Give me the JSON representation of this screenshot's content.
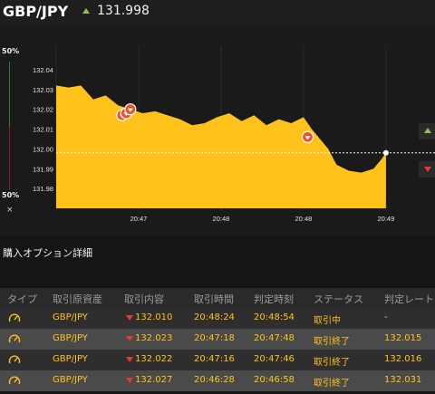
{
  "header": {
    "pair": "GBP/JPY",
    "price": "131.998",
    "trend_icon": "arrow-up-icon"
  },
  "colors": {
    "area_fill": "#ffc21a",
    "text_gold": "#ffc21a",
    "up_green": "#8bc34a",
    "down_red": "#e53935"
  },
  "meter": {
    "top_pct": "50%",
    "bottom_pct": "50%",
    "close_label": "×"
  },
  "chart_data": {
    "type": "area",
    "y_ticks": [
      "132.04",
      "132.03",
      "132.02",
      "132.01",
      "132.00",
      "131.99",
      "131.98"
    ],
    "ylim": [
      131.97,
      132.045
    ],
    "x_ticks": [
      "20:47",
      "20:48",
      "20:48",
      "20:49"
    ],
    "x_tick_times": [
      1,
      2,
      3,
      4
    ],
    "series": [
      {
        "points": [
          [
            0,
            132.032
          ],
          [
            0.15,
            132.031
          ],
          [
            0.3,
            132.032
          ],
          [
            0.45,
            132.025
          ],
          [
            0.6,
            132.027
          ],
          [
            0.75,
            132.022
          ],
          [
            0.9,
            132.02
          ],
          [
            1.05,
            132.018
          ],
          [
            1.2,
            132.019
          ],
          [
            1.35,
            132.017
          ],
          [
            1.5,
            132.015
          ],
          [
            1.65,
            132.012
          ],
          [
            1.8,
            132.013
          ],
          [
            1.95,
            132.016
          ],
          [
            2.1,
            132.018
          ],
          [
            2.25,
            132.014
          ],
          [
            2.4,
            132.017
          ],
          [
            2.55,
            132.012
          ],
          [
            2.7,
            132.015
          ],
          [
            2.85,
            132.013
          ],
          [
            3.0,
            132.016
          ],
          [
            3.1,
            132.01
          ],
          [
            3.2,
            132.005
          ],
          [
            3.3,
            132.0
          ],
          [
            3.4,
            131.992
          ],
          [
            3.55,
            131.989
          ],
          [
            3.7,
            131.988
          ],
          [
            3.85,
            131.99
          ],
          [
            3.95,
            131.995
          ],
          [
            4.0,
            131.998
          ]
        ]
      }
    ],
    "current_value": 131.998,
    "trade_markers": [
      {
        "x": 0.8,
        "y": 132.017
      },
      {
        "x": 0.85,
        "y": 132.018
      },
      {
        "x": 0.9,
        "y": 132.02
      },
      {
        "x": 3.05,
        "y": 132.006
      }
    ],
    "x_max": 4.0
  },
  "section": {
    "title": "購入オプション詳細"
  },
  "table": {
    "headers": [
      "タイプ",
      "取引原資産",
      "取引内容",
      "取引時間",
      "判定時刻",
      "ステータス",
      "判定レート"
    ],
    "rows": [
      {
        "asset": "GBP/JPY",
        "content": "132.010",
        "time": "20:48:24",
        "judge": "20:48:54",
        "status": "取引中",
        "rate": "-"
      },
      {
        "asset": "GBP/JPY",
        "content": "132.023",
        "time": "20:47:18",
        "judge": "20:47:48",
        "status": "取引終了",
        "rate": "132.015"
      },
      {
        "asset": "GBP/JPY",
        "content": "132.022",
        "time": "20:47:16",
        "judge": "20:47:46",
        "status": "取引終了",
        "rate": "132.016"
      },
      {
        "asset": "GBP/JPY",
        "content": "132.027",
        "time": "20:46:28",
        "judge": "20:46:58",
        "status": "取引終了",
        "rate": "132.031"
      }
    ]
  }
}
